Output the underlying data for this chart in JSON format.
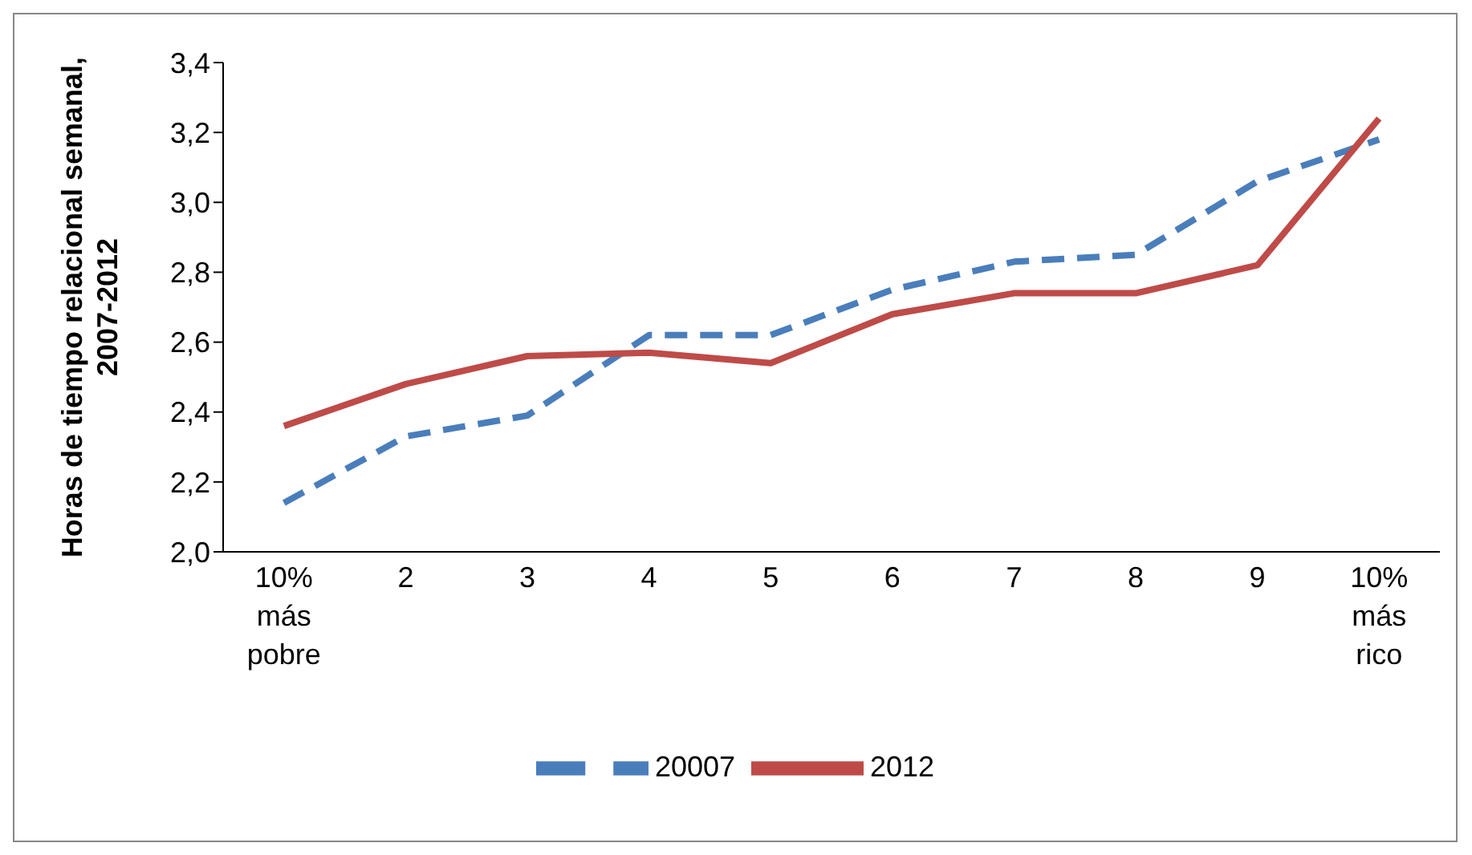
{
  "chart_data": {
    "type": "line",
    "ylabel": "Horas de tiempo relacional semanal, 2007-2012",
    "categories": [
      "10%\nmás\npobre",
      "2",
      "3",
      "4",
      "5",
      "6",
      "7",
      "8",
      "9",
      "10%\nmás\nrico"
    ],
    "series": [
      {
        "name": "20007",
        "color": "#4a7ebb",
        "line_style": "dashed",
        "values": [
          2.14,
          2.33,
          2.39,
          2.62,
          2.62,
          2.75,
          2.83,
          2.85,
          3.06,
          3.18
        ]
      },
      {
        "name": "2012",
        "color": "#be4b48",
        "line_style": "solid",
        "values": [
          2.36,
          2.48,
          2.56,
          2.57,
          2.54,
          2.68,
          2.74,
          2.74,
          2.82,
          3.24
        ]
      }
    ],
    "ylim": [
      2.0,
      3.4
    ],
    "yticks": [
      {
        "value": 2.0,
        "label": "2,0"
      },
      {
        "value": 2.2,
        "label": "2,2"
      },
      {
        "value": 2.4,
        "label": "2,4"
      },
      {
        "value": 2.6,
        "label": "2,6"
      },
      {
        "value": 2.8,
        "label": "2,8"
      },
      {
        "value": 3.0,
        "label": "3,0"
      },
      {
        "value": 3.2,
        "label": "3,2"
      },
      {
        "value": 3.4,
        "label": "3,4"
      }
    ],
    "grid": false,
    "legend": "bottom",
    "marker": "none"
  }
}
